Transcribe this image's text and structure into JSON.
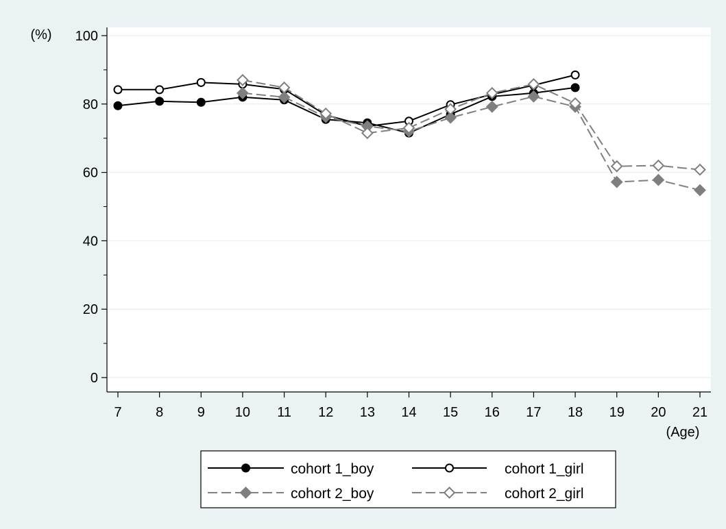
{
  "chart_data": {
    "type": "line",
    "title": "",
    "ylabel": "(%)",
    "xlabel": "(Age)",
    "x": [
      7,
      8,
      9,
      10,
      11,
      12,
      13,
      14,
      15,
      16,
      17,
      18,
      19,
      20,
      21
    ],
    "xlim": [
      7,
      21
    ],
    "ylim": [
      0,
      100
    ],
    "yticks": [
      0,
      20,
      40,
      60,
      80,
      100
    ],
    "grid": true,
    "legend_position": "bottom",
    "series": [
      {
        "name": "cohort 1_boy",
        "color": "#000000",
        "dash": false,
        "marker": "circle",
        "filled": true,
        "values": [
          79.5,
          80.8,
          80.5,
          82.0,
          81.2,
          75.5,
          74.5,
          71.5,
          77.0,
          82.2,
          83.2,
          84.8,
          null,
          null,
          null
        ]
      },
      {
        "name": "cohort 1_girl",
        "color": "#000000",
        "dash": false,
        "marker": "circle",
        "filled": false,
        "values": [
          84.2,
          84.2,
          86.3,
          85.8,
          84.3,
          76.8,
          73.5,
          75.0,
          79.8,
          82.8,
          85.5,
          88.5,
          null,
          null,
          null
        ]
      },
      {
        "name": "cohort 2_boy",
        "color": "#7f7f7f",
        "dash": true,
        "marker": "diamond",
        "filled": true,
        "values": [
          null,
          null,
          null,
          83.2,
          82.0,
          76.2,
          73.5,
          72.0,
          76.0,
          79.2,
          82.2,
          79.2,
          57.2,
          57.8,
          54.8
        ]
      },
      {
        "name": "cohort 2_girl",
        "color": "#7f7f7f",
        "dash": true,
        "marker": "diamond",
        "filled": false,
        "values": [
          null,
          null,
          null,
          87.0,
          84.8,
          77.2,
          71.5,
          73.0,
          78.5,
          83.2,
          85.8,
          80.2,
          61.8,
          62.0,
          60.8
        ]
      }
    ]
  }
}
